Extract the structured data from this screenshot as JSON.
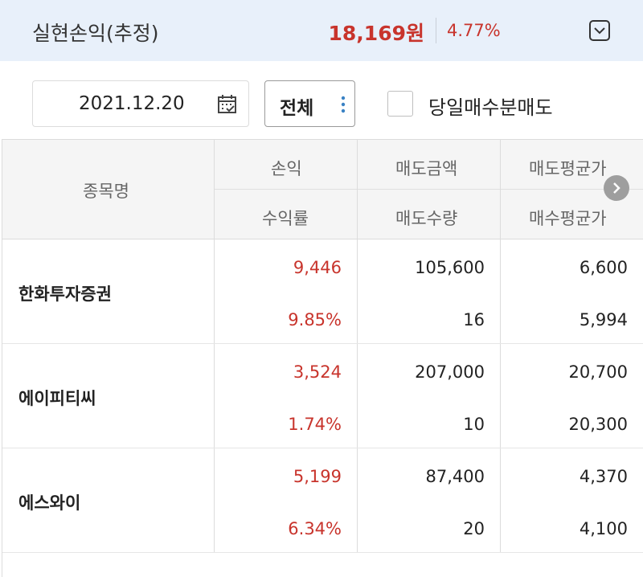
{
  "summary": {
    "title": "실현손익(추정)",
    "amount": "18,169원",
    "rate": "4.77%",
    "accent_color": "#c8342c",
    "collapse_icon": "chevron-down-icon"
  },
  "filters": {
    "date": "2021.12.20",
    "date_icon": "calendar-icon",
    "scope": "전체",
    "scope_icon": "kebab-icon",
    "same_day_label": "당일매수분매도",
    "same_day_checked": false
  },
  "table": {
    "headers": {
      "name": "종목명",
      "profit": "손익",
      "return_rate": "수익률",
      "sell_amount": "매도금액",
      "sell_qty": "매도수량",
      "sell_avg": "매도평균가",
      "buy_avg": "매수평균가"
    },
    "scroll_icon": "chevron-right-icon",
    "rows": [
      {
        "name": "한화투자증권",
        "profit": "9,446",
        "return_rate": "9.85%",
        "sell_amount": "105,600",
        "sell_qty": "16",
        "sell_avg": "6,600",
        "buy_avg": "5,994"
      },
      {
        "name": "에이피티씨",
        "profit": "3,524",
        "return_rate": "1.74%",
        "sell_amount": "207,000",
        "sell_qty": "10",
        "sell_avg": "20,700",
        "buy_avg": "20,300"
      },
      {
        "name": "에스와이",
        "profit": "5,199",
        "return_rate": "6.34%",
        "sell_amount": "87,400",
        "sell_qty": "20",
        "sell_avg": "4,370",
        "buy_avg": "4,100"
      }
    ]
  }
}
